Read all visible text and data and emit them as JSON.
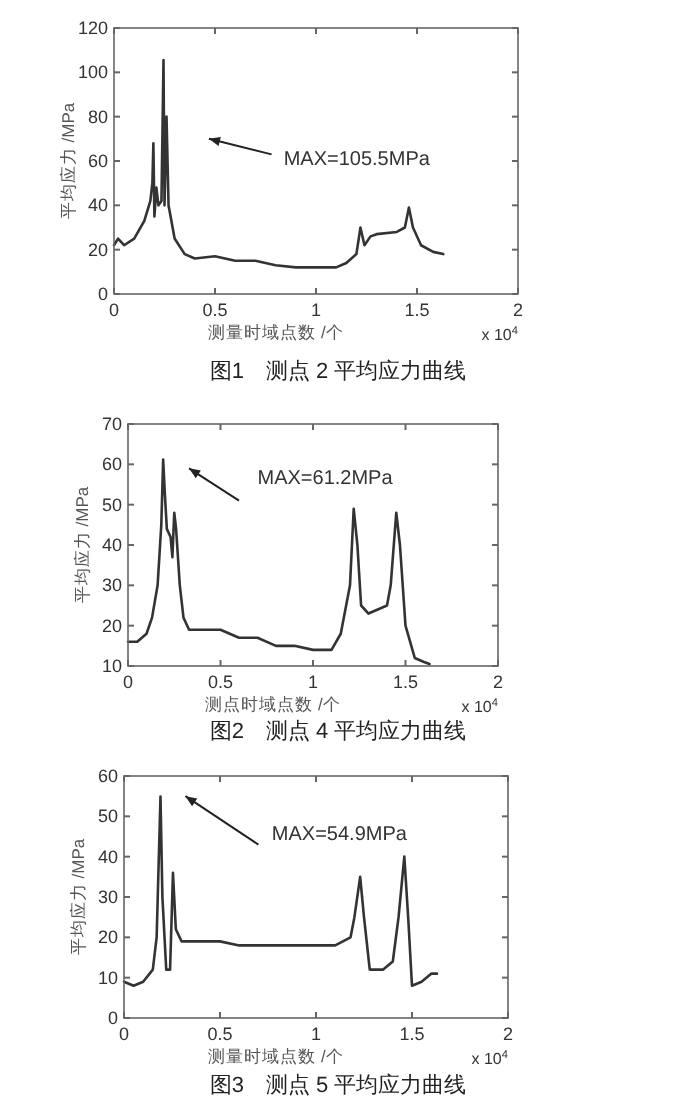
{
  "chart_data": [
    {
      "type": "line",
      "title": "图1　测点 2 平均应力曲线",
      "xlabel": "测量时域点数 /个",
      "ylabel": "平均应力 /MPa",
      "xlim": [
        0,
        2
      ],
      "xticks": [
        0,
        0.5,
        1,
        1.5,
        2
      ],
      "ylim": [
        0,
        120
      ],
      "yticks": [
        0,
        20,
        40,
        60,
        80,
        100,
        120
      ],
      "grid": false,
      "marker": "none",
      "line_style": "solid",
      "annotations": [
        "MAX=105.5MPa",
        "x 10$^{4}$"
      ],
      "series": [
        {
          "color": "#333333",
          "x": [
            0,
            0.02,
            0.05,
            0.1,
            0.15,
            0.18,
            0.19,
            0.195,
            0.2,
            0.21,
            0.22,
            0.235,
            0.245,
            0.25,
            0.26,
            0.27,
            0.3,
            0.35,
            0.4,
            0.5,
            0.6,
            0.7,
            0.8,
            0.9,
            1.0,
            1.1,
            1.15,
            1.2,
            1.22,
            1.24,
            1.27,
            1.3,
            1.4,
            1.44,
            1.46,
            1.48,
            1.52,
            1.58,
            1.63
          ],
          "values": [
            22,
            25,
            22,
            25,
            33,
            42,
            50,
            68,
            35,
            48,
            40,
            42,
            105.5,
            40,
            80,
            40,
            25,
            18,
            16,
            17,
            15,
            15,
            13,
            12,
            12,
            12,
            14,
            18,
            30,
            22,
            26,
            27,
            28,
            30,
            39,
            30,
            22,
            19,
            18
          ]
        }
      ]
    },
    {
      "type": "line",
      "title": "图2　测点 4 平均应力曲线",
      "xlabel": "测点时域点数 /个",
      "ylabel": "平均应力 /MPa",
      "xlim": [
        0,
        2
      ],
      "xticks": [
        0,
        0.5,
        1,
        1.5,
        2
      ],
      "ylim": [
        10,
        70
      ],
      "yticks": [
        10,
        20,
        30,
        40,
        50,
        60,
        70
      ],
      "grid": false,
      "marker": "none",
      "line_style": "solid",
      "annotations": [
        "MAX=61.2MPa",
        "x 10$^{4}$"
      ],
      "series": [
        {
          "color": "#333333",
          "x": [
            0,
            0.05,
            0.1,
            0.13,
            0.16,
            0.18,
            0.19,
            0.2,
            0.21,
            0.23,
            0.24,
            0.25,
            0.26,
            0.28,
            0.3,
            0.33,
            0.4,
            0.5,
            0.55,
            0.6,
            0.7,
            0.8,
            0.9,
            1.0,
            1.1,
            1.15,
            1.2,
            1.22,
            1.24,
            1.26,
            1.3,
            1.35,
            1.4,
            1.42,
            1.45,
            1.47,
            1.5,
            1.55,
            1.6,
            1.63
          ],
          "values": [
            16,
            16,
            18,
            22,
            30,
            45,
            61.2,
            52,
            44,
            42,
            37,
            48,
            44,
            30,
            22,
            19,
            19,
            19,
            18,
            17,
            17,
            15,
            15,
            14,
            14,
            18,
            30,
            49,
            40,
            25,
            23,
            24,
            25,
            30,
            48,
            40,
            20,
            12,
            11,
            10.5
          ]
        }
      ]
    },
    {
      "type": "line",
      "title": "图3　测点 5 平均应力曲线",
      "xlabel": "测量时域点数 /个",
      "ylabel": "平均应力 /MPa",
      "xlim": [
        0,
        2
      ],
      "xticks": [
        0,
        0.5,
        1,
        1.5,
        2
      ],
      "ylim": [
        0,
        60
      ],
      "yticks": [
        0,
        10,
        20,
        30,
        40,
        50,
        60
      ],
      "grid": false,
      "marker": "none",
      "line_style": "solid",
      "annotations": [
        "MAX=54.9MPa",
        "x 10$^{4}$"
      ],
      "series": [
        {
          "color": "#333333",
          "x": [
            0,
            0.05,
            0.1,
            0.15,
            0.17,
            0.19,
            0.2,
            0.22,
            0.24,
            0.255,
            0.27,
            0.3,
            0.4,
            0.5,
            0.6,
            0.7,
            0.8,
            0.9,
            1.0,
            1.1,
            1.18,
            1.2,
            1.23,
            1.25,
            1.28,
            1.35,
            1.4,
            1.43,
            1.46,
            1.48,
            1.5,
            1.55,
            1.6,
            1.63
          ],
          "values": [
            9,
            8,
            9,
            12,
            20,
            54.9,
            30,
            12,
            12,
            36,
            22,
            19,
            19,
            19,
            18,
            18,
            18,
            18,
            18,
            18,
            20,
            25,
            35,
            25,
            12,
            12,
            14,
            25,
            40,
            25,
            8,
            9,
            11,
            11
          ]
        }
      ]
    }
  ]
}
